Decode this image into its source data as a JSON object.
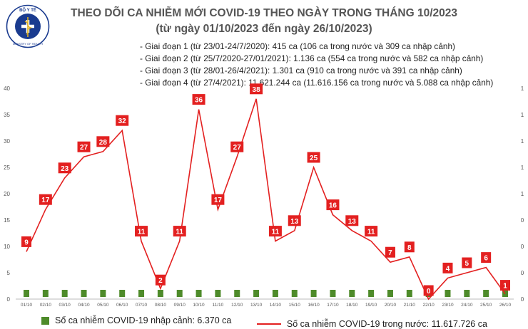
{
  "logo": {
    "top_text": "BỘ Y TẾ",
    "bottom_text": "MINISTRY OF HEALTH",
    "color": "#1a3b8f"
  },
  "header": {
    "title": "THEO DÕI CA NHIỄM MỚI COVID-19 THEO NGÀY TRONG THÁNG 10/2023",
    "subtitle": "(từ ngày 01/10/2023 đến ngày 26/10/2023)"
  },
  "notes": [
    "- Giai đoạn 1 (từ 23/01-24/7/2020): 415 ca (106 ca trong nước và 309 ca nhập cảnh)",
    "- Giai đoạn 2 (từ 25/7/2020-27/01/2021): 1.136 ca (554 ca trong nước và 582 ca nhập cảnh)",
    "- Giai đoạn 3 (từ 28/01-26/4/2021): 1.301 ca (910 ca trong nước và 391 ca nhập cảnh)",
    "- Giai đoạn 4 (từ 27/4/2021): 11.621.244 ca (11.616.156 ca trong nước và 5.088 ca nhập cảnh)"
  ],
  "legend": {
    "imported": "Số ca nhiễm COVID-19 nhập cảnh: 6.370 ca",
    "domestic": "Số ca nhiễm COVID-19 trong nước: 11.617.726 ca"
  },
  "chart_data": {
    "type": "line",
    "categories": [
      "01/10",
      "02/10",
      "03/10",
      "04/10",
      "05/10",
      "06/10",
      "07/10",
      "08/10",
      "09/10",
      "10/10",
      "11/10",
      "12/10",
      "13/10",
      "14/10",
      "15/10",
      "16/10",
      "17/10",
      "18/10",
      "19/10",
      "20/10",
      "21/10",
      "22/10",
      "23/10",
      "24/10",
      "25/10",
      "26/10"
    ],
    "series": [
      {
        "name": "Số ca nhiễm COVID-19 trong nước: 11.617.726 ca",
        "type": "line",
        "color": "#e32020",
        "values": [
          9,
          17,
          23,
          27,
          28,
          32,
          11,
          2,
          11,
          36,
          17,
          27,
          38,
          11,
          13,
          25,
          16,
          13,
          11,
          7,
          8,
          0,
          4,
          5,
          6,
          1
        ]
      },
      {
        "name": "Số ca nhiễm COVID-19 nhập cảnh: 6.370 ca",
        "type": "bar",
        "color": "#4e8b2a",
        "values": [
          0,
          0,
          0,
          0,
          0,
          0,
          0,
          0,
          0,
          0,
          0,
          0,
          0,
          0,
          0,
          0,
          0,
          0,
          0,
          0,
          0,
          0,
          0,
          0,
          0,
          0
        ]
      }
    ],
    "y_left_ticks": [
      "0",
      "5",
      "10",
      "15",
      "20",
      "25",
      "30",
      "35",
      "40"
    ],
    "ylim": [
      0,
      40
    ],
    "y_right_ticks": [
      "0",
      "0",
      "0",
      "0",
      "1",
      "1",
      "1",
      "1",
      "1"
    ],
    "grid": false,
    "legend_position": "bottom"
  }
}
